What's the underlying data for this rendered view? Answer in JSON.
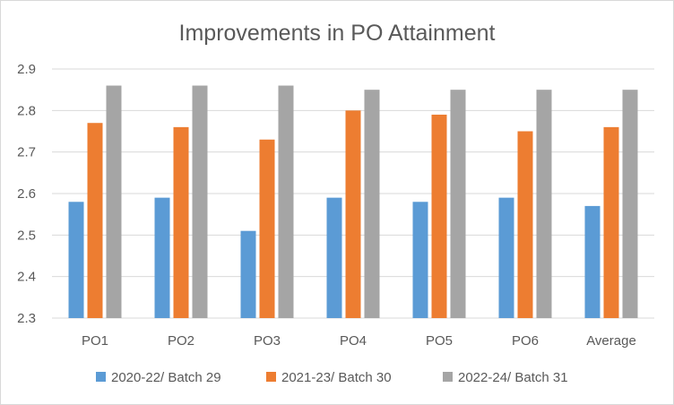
{
  "chart_data": {
    "type": "bar",
    "title": "Improvements in PO Attainment",
    "xlabel": "",
    "ylabel": "",
    "categories": [
      "PO1",
      "PO2",
      "PO3",
      "PO4",
      "PO5",
      "PO6",
      "Average"
    ],
    "series": [
      {
        "name": "2020-22/ Batch 29",
        "color": "#5b9bd5",
        "values": [
          2.58,
          2.59,
          2.51,
          2.59,
          2.58,
          2.59,
          2.57
        ]
      },
      {
        "name": "2021-23/ Batch 30",
        "color": "#ed7d31",
        "values": [
          2.77,
          2.76,
          2.73,
          2.8,
          2.79,
          2.75,
          2.76
        ]
      },
      {
        "name": "2022-24/ Batch 31",
        "color": "#a5a5a5",
        "values": [
          2.86,
          2.86,
          2.86,
          2.85,
          2.85,
          2.85,
          2.85
        ]
      }
    ],
    "ylim": [
      2.3,
      2.9
    ],
    "yticks": [
      "2.3",
      "2.4",
      "2.5",
      "2.6",
      "2.7",
      "2.8",
      "2.9"
    ],
    "grid": true,
    "legend_position": "bottom"
  }
}
